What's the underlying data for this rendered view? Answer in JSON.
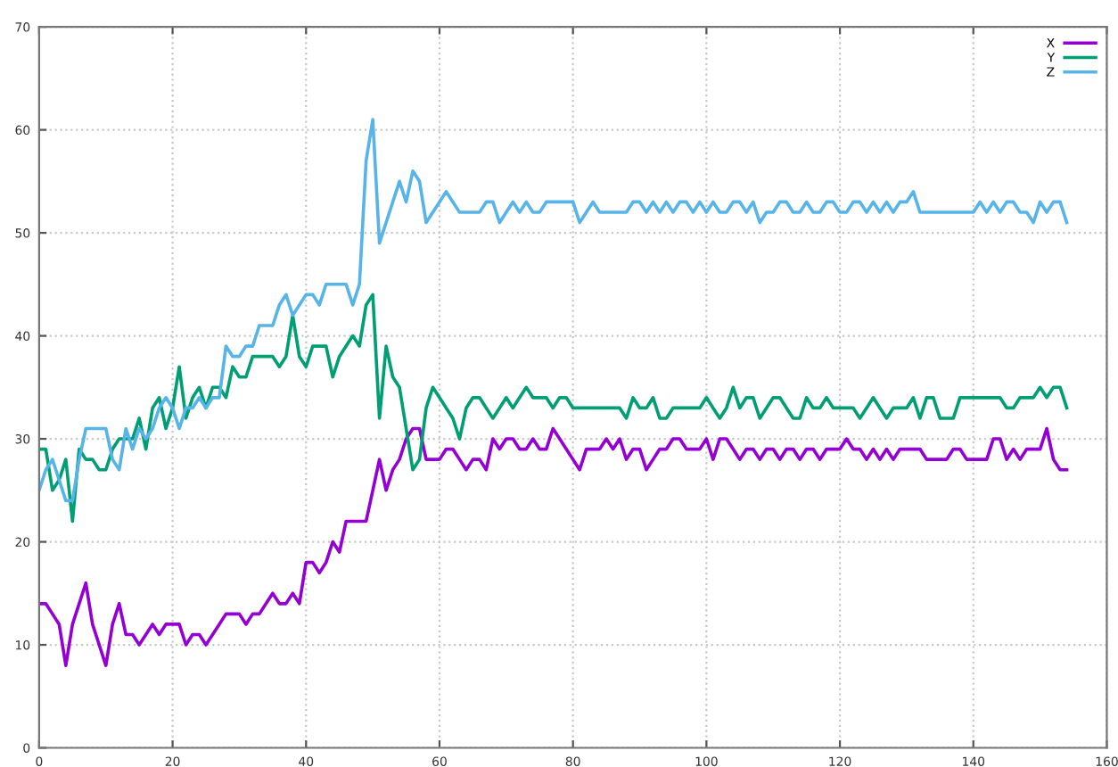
{
  "chart_data": {
    "type": "line",
    "x": [
      0,
      1,
      2,
      3,
      4,
      5,
      6,
      7,
      8,
      9,
      10,
      11,
      12,
      13,
      14,
      15,
      16,
      17,
      18,
      19,
      20,
      21,
      22,
      23,
      24,
      25,
      26,
      27,
      28,
      29,
      30,
      31,
      32,
      33,
      34,
      35,
      36,
      37,
      38,
      39,
      40,
      41,
      42,
      43,
      44,
      45,
      46,
      47,
      48,
      49,
      50,
      51,
      52,
      53,
      54,
      55,
      56,
      57,
      58,
      59,
      60,
      61,
      62,
      63,
      64,
      65,
      66,
      67,
      68,
      69,
      70,
      71,
      72,
      73,
      74,
      75,
      76,
      77,
      78,
      79,
      80,
      81,
      82,
      83,
      84,
      85,
      86,
      87,
      88,
      89,
      90,
      91,
      92,
      93,
      94,
      95,
      96,
      97,
      98,
      99,
      100,
      101,
      102,
      103,
      104,
      105,
      106,
      107,
      108,
      109,
      110,
      111,
      112,
      113,
      114,
      115,
      116,
      117,
      118,
      119,
      120,
      121,
      122,
      123,
      124,
      125,
      126,
      127,
      128,
      129,
      130,
      131,
      132,
      133,
      134,
      135,
      136,
      137,
      138,
      139,
      140,
      141,
      142,
      143,
      144,
      145,
      146,
      147,
      148,
      149,
      150,
      151,
      152,
      153,
      154
    ],
    "series": [
      {
        "name": "X",
        "color": "#9400d3",
        "values": [
          14,
          14,
          13,
          12,
          8,
          12,
          14,
          16,
          12,
          10,
          8,
          12,
          14,
          11,
          11,
          10,
          11,
          12,
          11,
          12,
          12,
          12,
          10,
          11,
          11,
          10,
          11,
          12,
          13,
          13,
          13,
          12,
          13,
          13,
          14,
          15,
          14,
          14,
          15,
          14,
          18,
          18,
          17,
          18,
          20,
          19,
          22,
          22,
          22,
          22,
          25,
          28,
          25,
          27,
          28,
          30,
          31,
          31,
          28,
          28,
          28,
          29,
          29,
          28,
          27,
          28,
          28,
          27,
          30,
          29,
          30,
          30,
          29,
          29,
          30,
          29,
          29,
          31,
          30,
          29,
          28,
          27,
          29,
          29,
          29,
          30,
          29,
          30,
          28,
          29,
          29,
          27,
          28,
          29,
          29,
          30,
          30,
          29,
          29,
          29,
          30,
          28,
          30,
          30,
          29,
          28,
          29,
          29,
          28,
          29,
          29,
          28,
          29,
          29,
          28,
          29,
          29,
          28,
          29,
          29,
          29,
          30,
          29,
          29,
          28,
          29,
          28,
          29,
          28,
          29,
          29,
          29,
          29,
          28,
          28,
          28,
          28,
          29,
          29,
          28,
          28,
          28,
          28,
          30,
          30,
          28,
          29,
          28,
          29,
          29,
          29,
          31,
          28,
          27,
          27
        ]
      },
      {
        "name": "Y",
        "color": "#009e73",
        "values": [
          29,
          29,
          25,
          26,
          28,
          22,
          29,
          28,
          28,
          27,
          27,
          29,
          30,
          30,
          30,
          32,
          29,
          33,
          34,
          31,
          33,
          37,
          32,
          34,
          35,
          33,
          35,
          35,
          34,
          37,
          36,
          36,
          38,
          38,
          38,
          38,
          37,
          38,
          42,
          38,
          37,
          39,
          39,
          39,
          36,
          38,
          39,
          40,
          39,
          43,
          44,
          32,
          39,
          36,
          35,
          31,
          27,
          28,
          33,
          35,
          34,
          33,
          32,
          30,
          33,
          34,
          34,
          33,
          32,
          33,
          34,
          33,
          34,
          35,
          34,
          34,
          34,
          33,
          34,
          34,
          33,
          33,
          33,
          33,
          33,
          33,
          33,
          33,
          32,
          34,
          33,
          33,
          34,
          32,
          32,
          33,
          33,
          33,
          33,
          33,
          34,
          33,
          32,
          33,
          35,
          33,
          34,
          34,
          32,
          33,
          34,
          34,
          33,
          32,
          32,
          34,
          33,
          33,
          34,
          33,
          33,
          33,
          33,
          32,
          33,
          34,
          33,
          32,
          33,
          33,
          33,
          34,
          32,
          34,
          34,
          32,
          32,
          32,
          34,
          34,
          34,
          34,
          34,
          34,
          34,
          33,
          33,
          34,
          34,
          34,
          35,
          34,
          35,
          35,
          33
        ]
      },
      {
        "name": "Z",
        "color": "#56b4e9",
        "values": [
          25,
          27,
          28,
          26,
          24,
          24,
          28,
          31,
          31,
          31,
          31,
          28,
          27,
          31,
          29,
          31,
          30,
          31,
          33,
          34,
          33,
          31,
          33,
          33,
          34,
          33,
          34,
          34,
          39,
          38,
          38,
          39,
          39,
          41,
          41,
          41,
          43,
          44,
          42,
          43,
          44,
          44,
          43,
          45,
          45,
          45,
          45,
          43,
          45,
          57,
          61,
          49,
          51,
          53,
          55,
          53,
          56,
          55,
          51,
          52,
          53,
          54,
          53,
          52,
          52,
          52,
          52,
          53,
          53,
          51,
          52,
          53,
          52,
          53,
          52,
          52,
          53,
          53,
          53,
          53,
          53,
          51,
          52,
          53,
          52,
          52,
          52,
          52,
          52,
          53,
          53,
          52,
          53,
          52,
          53,
          52,
          53,
          53,
          52,
          53,
          52,
          53,
          52,
          52,
          53,
          53,
          52,
          53,
          51,
          52,
          52,
          53,
          53,
          52,
          52,
          53,
          52,
          52,
          53,
          53,
          52,
          52,
          53,
          53,
          52,
          53,
          52,
          53,
          52,
          53,
          53,
          54,
          52,
          52,
          52,
          52,
          52,
          52,
          52,
          52,
          52,
          53,
          52,
          53,
          52,
          53,
          53,
          52,
          52,
          51,
          53,
          52,
          53,
          53,
          51
        ]
      }
    ],
    "xlim": [
      0,
      160
    ],
    "xticks": [
      0,
      20,
      40,
      60,
      80,
      100,
      120,
      140,
      160
    ],
    "ylim": [
      0,
      70
    ],
    "yticks": [
      0,
      10,
      20,
      30,
      40,
      50,
      60,
      70
    ],
    "grid": true,
    "legend": "top right",
    "line_style": "solid"
  }
}
